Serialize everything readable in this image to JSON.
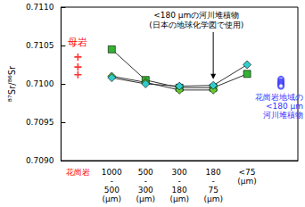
{
  "chart_data": {
    "type": "line",
    "y_label": "⁸⁷Sr/⁸⁶Sr",
    "categories": [
      "花崗岩",
      "1000\n-\n500\n(μm)",
      "500\n-\n300\n(μm)",
      "300\n-\n180\n(μm)",
      "180\n-\n75\n(μm)",
      "<75\n(μm)",
      null
    ],
    "ylim": [
      0.709,
      0.711
    ],
    "yticks": [
      {
        "value": 0.709,
        "label": "0.7090"
      },
      {
        "value": 0.7095,
        "label": "0.7095"
      },
      {
        "value": 0.71,
        "label": "0.7100"
      },
      {
        "value": 0.7105,
        "label": "0.7105"
      },
      {
        "value": 0.711,
        "label": "0.7110"
      }
    ],
    "grid": false,
    "series": [
      {
        "type": "line",
        "marker": "square",
        "color": "#33b233",
        "values": [
          null,
          0.71045,
          0.71005,
          0.70995,
          0.70995,
          0.71013,
          null
        ]
      },
      {
        "type": "line",
        "marker": "diamond",
        "color": "#66cc33",
        "values": [
          null,
          0.7101,
          0.71002,
          0.70992,
          0.70992,
          null,
          null
        ]
      },
      {
        "type": "line",
        "marker": "diamond",
        "color": "#33cccc",
        "values": [
          null,
          0.71008,
          0.71,
          0.70997,
          0.70998,
          0.71025,
          null
        ]
      },
      {
        "type": "scatter",
        "name": "母岩",
        "marker": "plus",
        "color": "#ff0000",
        "x": [
          0,
          0,
          0
        ],
        "y": [
          0.71035,
          0.71022,
          0.71012
        ]
      },
      {
        "type": "scatter",
        "name": "花崗岩地域の\n<180 μm\n河川堆積物",
        "marker": "circle_open",
        "color": "#3333ff",
        "x": [
          6,
          6,
          6,
          6,
          6
        ],
        "y": [
          0.71006,
          0.71003,
          0.71001,
          0.70999,
          0.70997
        ]
      }
    ],
    "annotations": [
      {
        "text": "<180 μmの河川堆積物\n(日本の地球化学図で使用)"
      }
    ]
  }
}
